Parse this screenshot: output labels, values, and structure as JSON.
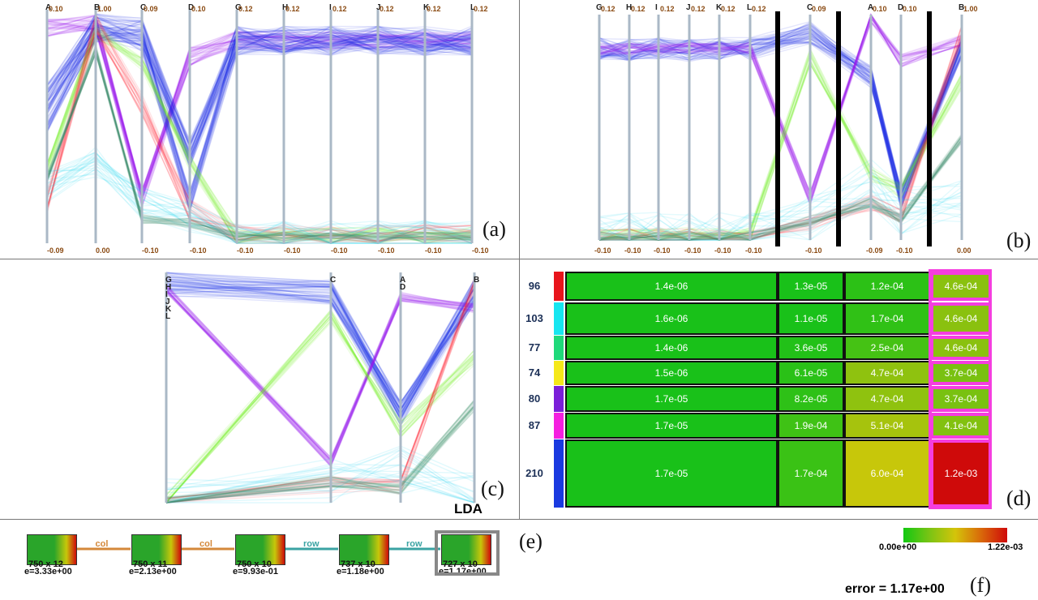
{
  "panels": {
    "a": {
      "label": "(a)",
      "axes": [
        {
          "name": "A",
          "top": "0.10",
          "bottom": "-0.09"
        },
        {
          "name": "B",
          "top": "1.00",
          "bottom": "0.00"
        },
        {
          "name": "C",
          "top": "0.09",
          "bottom": "-0.10"
        },
        {
          "name": "D",
          "top": "0.10",
          "bottom": "-0.10"
        },
        {
          "name": "G",
          "top": "0.12",
          "bottom": "-0.10"
        },
        {
          "name": "H",
          "top": "0.12",
          "bottom": "-0.10"
        },
        {
          "name": "I",
          "top": "0.12",
          "bottom": "-0.10"
        },
        {
          "name": "J",
          "top": "0.12",
          "bottom": "-0.10"
        },
        {
          "name": "K",
          "top": "0.12",
          "bottom": "-0.10"
        },
        {
          "name": "L",
          "top": "0.12",
          "bottom": "-0.10"
        }
      ]
    },
    "b": {
      "label": "(b)",
      "axes": [
        {
          "name": "G",
          "top": "0.12",
          "bottom": "-0.10"
        },
        {
          "name": "H",
          "top": "0.12",
          "bottom": "-0.10"
        },
        {
          "name": "I",
          "top": "0.12",
          "bottom": "-0.10"
        },
        {
          "name": "J",
          "top": "0.12",
          "bottom": "-0.10"
        },
        {
          "name": "K",
          "top": "0.12",
          "bottom": "-0.10"
        },
        {
          "name": "L",
          "top": "0.12",
          "bottom": "-0.10"
        },
        {
          "name": "C",
          "top": "0.09",
          "bottom": "-0.10"
        },
        {
          "name": "A",
          "top": "0.10",
          "bottom": "-0.09"
        },
        {
          "name": "D",
          "top": "0.10",
          "bottom": "-0.10"
        },
        {
          "name": "B",
          "top": "1.00",
          "bottom": "0.00"
        }
      ]
    },
    "c": {
      "label": "(c)",
      "axes": [
        {
          "name": "G H I J K L"
        },
        {
          "name": "C"
        },
        {
          "name": "A D"
        },
        {
          "name": "B"
        }
      ],
      "method": "LDA"
    },
    "d": {
      "label": "(d)",
      "row_counts": [
        "96",
        "103",
        "77",
        "74",
        "80",
        "87",
        "210"
      ],
      "row_colors": [
        "#e8151c",
        "#17e6f0",
        "#1fd97a",
        "#f5e81a",
        "#7b1fd9",
        "#f51fe0",
        "#1a3ae0"
      ],
      "cells": [
        [
          "1.4e-06",
          "1.3e-05",
          "1.2e-04",
          "4.6e-04"
        ],
        [
          "1.6e-06",
          "1.1e-05",
          "1.7e-04",
          "4.6e-04"
        ],
        [
          "1.4e-06",
          "3.6e-05",
          "2.5e-04",
          "4.6e-04"
        ],
        [
          "1.5e-06",
          "6.1e-05",
          "4.7e-04",
          "3.7e-04"
        ],
        [
          "1.7e-05",
          "8.2e-05",
          "4.7e-04",
          "3.7e-04"
        ],
        [
          "1.7e-05",
          "1.9e-04",
          "5.1e-04",
          "4.1e-04"
        ],
        [
          "1.7e-05",
          "1.7e-04",
          "6.0e-04",
          "1.2e-03"
        ]
      ],
      "cell_colors": [
        [
          "#19c119",
          "#19c119",
          "#2cc116",
          "#8ac10f"
        ],
        [
          "#19c119",
          "#19c119",
          "#30c116",
          "#8ac10f"
        ],
        [
          "#19c119",
          "#22c118",
          "#45c214",
          "#8ac10f"
        ],
        [
          "#19c119",
          "#2ac117",
          "#8fc20f",
          "#79c111"
        ],
        [
          "#19c119",
          "#2ec117",
          "#8fc20f",
          "#79c111"
        ],
        [
          "#19c119",
          "#3fc215",
          "#a6c30d",
          "#82c110"
        ],
        [
          "#19c119",
          "#3ac215",
          "#c7c70a",
          "#cf0a0a"
        ]
      ],
      "highlight_color": "#f53de0"
    },
    "e": {
      "label": "(e)",
      "nodes": [
        {
          "size": "750 x 12",
          "error": "e=3.33e+00"
        },
        {
          "size": "750 x 11",
          "error": "e=2.13e+00"
        },
        {
          "size": "750 x 10",
          "error": "e=9.93e-01"
        },
        {
          "size": "737 x 10",
          "error": "e=1.18e+00"
        },
        {
          "size": "727 x 10",
          "error": "e=1.17e+00"
        }
      ],
      "edges": [
        {
          "label": "col",
          "color": "#d4883a"
        },
        {
          "label": "col",
          "color": "#d4883a"
        },
        {
          "label": "row",
          "color": "#3aa3a3"
        },
        {
          "label": "row",
          "color": "#3aa3a3"
        }
      ]
    },
    "f": {
      "label": "(f)",
      "scale_min": "0.00e+00",
      "scale_max": "1.22e-03",
      "error_text": "error = 1.17e+00"
    }
  }
}
